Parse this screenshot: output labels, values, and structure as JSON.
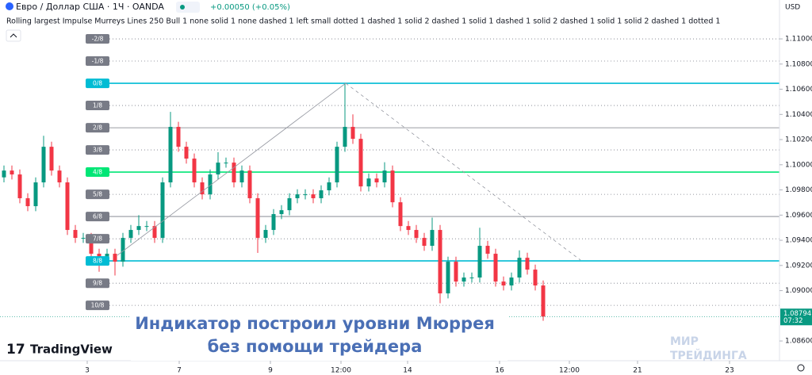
{
  "header": {
    "symbol": "Евро / Доллар США · 1Ч · OANDA",
    "change": "+0.00050 (+0.05%)",
    "indicator": "Rolling largest Impulse Murreys Lines 250 Bull 1 none solid 1 none dashed 1 left small dotted 1 dashed 1 solid 2 dashed 1 solid 1 dashed 1 solid 2 dashed 1 solid 1 solid 2 dashed 1 dotted 1",
    "currency": "USD"
  },
  "chart_data": {
    "type": "candlestick",
    "up_color": "#089981",
    "down_color": "#f23645",
    "candles": [
      [
        1.099,
        1.09994,
        1.0986,
        1.09954
      ],
      [
        1.09954,
        1.09994,
        1.09883,
        1.09923
      ],
      [
        1.09923,
        1.09963,
        1.09694,
        1.09734
      ],
      [
        1.09734,
        1.09774,
        1.09631,
        1.09671
      ],
      [
        1.09671,
        1.099,
        1.09631,
        1.0986
      ],
      [
        1.0986,
        1.1023,
        1.0982,
        1.10143
      ],
      [
        1.10143,
        1.10183,
        1.09914,
        1.09954
      ],
      [
        1.09954,
        1.09994,
        1.0982,
        1.0986
      ],
      [
        1.0986,
        1.099,
        1.09442,
        1.09482
      ],
      [
        1.09482,
        1.09522,
        1.09379,
        1.09419
      ],
      [
        1.09419,
        1.09459,
        1.09379,
        1.09419
      ],
      [
        1.09419,
        1.09459,
        1.09253,
        1.09293
      ],
      [
        1.09293,
        1.09333,
        1.0915,
        1.09261
      ],
      [
        1.09261,
        1.09333,
        1.09221,
        1.09293
      ],
      [
        1.09293,
        1.09333,
        1.0912,
        1.0923
      ],
      [
        1.0923,
        1.09459,
        1.0919,
        1.09419
      ],
      [
        1.09419,
        1.09522,
        1.09379,
        1.09482
      ],
      [
        1.09482,
        1.096,
        1.09442,
        1.09513
      ],
      [
        1.09513,
        1.09553,
        1.09473,
        1.09513
      ],
      [
        1.09513,
        1.09553,
        1.09379,
        1.09419
      ],
      [
        1.09419,
        1.099,
        1.09379,
        1.0986
      ],
      [
        1.0986,
        1.1042,
        1.0982,
        1.10301
      ],
      [
        1.10301,
        1.10341,
        1.10103,
        1.10143
      ],
      [
        1.10143,
        1.10183,
        1.10009,
        1.10049
      ],
      [
        1.10049,
        1.10089,
        1.0982,
        1.0986
      ],
      [
        1.0986,
        1.099,
        1.09725,
        1.09765
      ],
      [
        1.09765,
        1.09963,
        1.09725,
        1.09923
      ],
      [
        1.09923,
        1.101,
        1.09883,
        1.10017
      ],
      [
        1.10017,
        1.10057,
        1.09977,
        1.10017
      ],
      [
        1.10017,
        1.10057,
        1.0982,
        1.0986
      ],
      [
        1.0986,
        1.09994,
        1.0982,
        1.09954
      ],
      [
        1.09954,
        1.09994,
        1.09694,
        1.09734
      ],
      [
        1.09734,
        1.09774,
        1.093,
        1.09419
      ],
      [
        1.09419,
        1.09522,
        1.09379,
        1.09482
      ],
      [
        1.09482,
        1.09648,
        1.09442,
        1.09608
      ],
      [
        1.09608,
        1.09679,
        1.09568,
        1.09639
      ],
      [
        1.09639,
        1.09774,
        1.09599,
        1.09734
      ],
      [
        1.09734,
        1.09805,
        1.09694,
        1.09765
      ],
      [
        1.09765,
        1.09805,
        1.09725,
        1.09765
      ],
      [
        1.09765,
        1.09805,
        1.09694,
        1.09734
      ],
      [
        1.09734,
        1.09837,
        1.09694,
        1.09797
      ],
      [
        1.09797,
        1.099,
        1.09757,
        1.0986
      ],
      [
        1.0986,
        1.10183,
        1.0982,
        1.10143
      ],
      [
        1.10143,
        1.10647,
        1.10103,
        1.10301
      ],
      [
        1.10301,
        1.104,
        1.10166,
        1.10206
      ],
      [
        1.10206,
        1.10246,
        1.09788,
        1.09828
      ],
      [
        1.09828,
        1.09931,
        1.09788,
        1.09891
      ],
      [
        1.09891,
        1.09931,
        1.0982,
        1.0986
      ],
      [
        1.0986,
        1.1002,
        1.0982,
        1.09954
      ],
      [
        1.09954,
        1.09994,
        1.09662,
        1.09702
      ],
      [
        1.09702,
        1.09742,
        1.09473,
        1.09513
      ],
      [
        1.09513,
        1.09553,
        1.09442,
        1.09482
      ],
      [
        1.09482,
        1.09522,
        1.09379,
        1.09419
      ],
      [
        1.09419,
        1.09459,
        1.09316,
        1.09356
      ],
      [
        1.09356,
        1.0958,
        1.09316,
        1.09482
      ],
      [
        1.09482,
        1.09522,
        1.089,
        1.08978
      ],
      [
        1.08978,
        1.0927,
        1.08938,
        1.0923
      ],
      [
        1.0923,
        1.0927,
        1.09032,
        1.09072
      ],
      [
        1.09072,
        1.09144,
        1.09032,
        1.09104
      ],
      [
        1.09104,
        1.09144,
        1.09064,
        1.09104
      ],
      [
        1.09104,
        1.095,
        1.09064,
        1.09356
      ],
      [
        1.09356,
        1.09396,
        1.09253,
        1.09293
      ],
      [
        1.09293,
        1.09333,
        1.09032,
        1.09072
      ],
      [
        1.09072,
        1.09112,
        1.09001,
        1.09041
      ],
      [
        1.09041,
        1.09144,
        1.09001,
        1.09104
      ],
      [
        1.09104,
        1.0932,
        1.09064,
        1.09261
      ],
      [
        1.09261,
        1.09301,
        1.09127,
        1.09167
      ],
      [
        1.09167,
        1.09207,
        1.09001,
        1.09041
      ],
      [
        1.09041,
        1.09081,
        1.0876,
        1.08794
      ]
    ],
    "xlim": [
      -0.5,
      97.8
    ],
    "xticks": [
      {
        "value": 10.5,
        "label": "3"
      },
      {
        "value": 22.1,
        "label": "7"
      },
      {
        "value": 33.6,
        "label": "9"
      },
      {
        "value": 42.5,
        "label": "12:00"
      },
      {
        "value": 50.9,
        "label": "14"
      },
      {
        "value": 62.5,
        "label": "16"
      },
      {
        "value": 71.3,
        "label": "12:00"
      },
      {
        "value": 79.9,
        "label": "21"
      },
      {
        "value": 91.5,
        "label": "23"
      }
    ],
    "ylim": [
      1.08443,
      1.11309
    ],
    "yticks": [
      {
        "value": 1.11,
        "label": "1.11000"
      },
      {
        "value": 1.108,
        "label": "1.10800"
      },
      {
        "value": 1.106,
        "label": "1.10600"
      },
      {
        "value": 1.104,
        "label": "1.10400"
      },
      {
        "value": 1.102,
        "label": "1.10200"
      },
      {
        "value": 1.1,
        "label": "1.10000"
      },
      {
        "value": 1.098,
        "label": "1.09800"
      },
      {
        "value": 1.096,
        "label": "1.09600"
      },
      {
        "value": 1.094,
        "label": "1.09400"
      },
      {
        "value": 1.092,
        "label": "1.09200"
      },
      {
        "value": 1.09,
        "label": "1.09000"
      },
      {
        "value": 1.086,
        "label": "1.08600"
      }
    ],
    "murrey_levels": [
      {
        "value": 1.11,
        "label": "-2/8",
        "color": "#787b86",
        "style": "dotted"
      },
      {
        "value": 1.10824,
        "label": "-1/8",
        "color": "#787b86",
        "style": "dotted"
      },
      {
        "value": 1.10647,
        "label": "0/8",
        "color": "#00bcd4",
        "style": "solid"
      },
      {
        "value": 1.10471,
        "label": "1/8",
        "color": "#787b86",
        "style": "dotted"
      },
      {
        "value": 1.10294,
        "label": "2/8",
        "color": "#787b86",
        "style": "solid"
      },
      {
        "value": 1.10118,
        "label": "3/8",
        "color": "#787b86",
        "style": "dotted"
      },
      {
        "value": 1.09942,
        "label": "4/8",
        "color": "#00e676",
        "style": "solid"
      },
      {
        "value": 1.09765,
        "label": "5/8",
        "color": "#787b86",
        "style": "dotted"
      },
      {
        "value": 1.09589,
        "label": "6/8",
        "color": "#787b86",
        "style": "solid"
      },
      {
        "value": 1.09412,
        "label": "7/8",
        "color": "#787b86",
        "style": "dotted"
      },
      {
        "value": 1.09236,
        "label": "8/8",
        "color": "#00bcd4",
        "style": "solid"
      },
      {
        "value": 1.09059,
        "label": "9/8",
        "color": "#787b86",
        "style": "dotted"
      },
      {
        "value": 1.08883,
        "label": "10/8",
        "color": "#787b86",
        "style": "dotted"
      }
    ],
    "last_price": {
      "value": 1.08794,
      "label": "1.08794",
      "time": "07:32"
    }
  },
  "overlay": {
    "lines": [
      "Индикатор построил уровни Мюррея",
      "без помощи трейдера"
    ]
  },
  "branding": {
    "logo": "TradingView",
    "watermark": [
      "МИР",
      "ТРЕЙДИНГА"
    ]
  }
}
